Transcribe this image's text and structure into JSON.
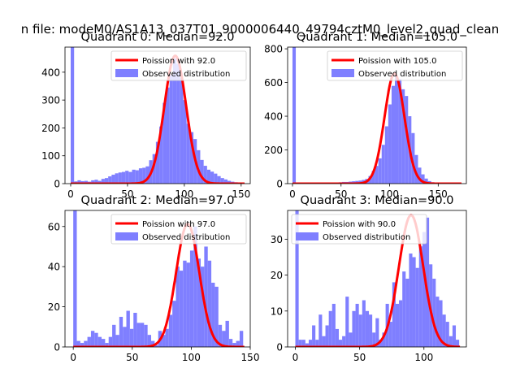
{
  "figure": {
    "suptitle": "n file: modeM0/AS1A13_037T01_9000006440_49794cztM0_level2_quad_clean",
    "colors": {
      "background": "#ffffff",
      "bars": "#7f7fff",
      "line": "#ff0000",
      "legend_border": "#cccccc"
    }
  },
  "chart_data": [
    {
      "type": "bar",
      "title": "Quadrant 0: Median=92.0",
      "median": 92.0,
      "xlim": [
        -5,
        158
      ],
      "ylim": [
        0,
        490
      ],
      "xticks": [
        0,
        50,
        100,
        150
      ],
      "yticks": [
        0,
        100,
        200,
        300,
        400
      ],
      "bin_width": 3,
      "legend": {
        "line": "Poission with 92.0",
        "bars": "Observed distribution",
        "location": "upper right"
      },
      "bins": [
        [
          0,
          490
        ],
        [
          3,
          8
        ],
        [
          6,
          12
        ],
        [
          9,
          9
        ],
        [
          12,
          10
        ],
        [
          15,
          7
        ],
        [
          18,
          12
        ],
        [
          21,
          14
        ],
        [
          24,
          10
        ],
        [
          27,
          17
        ],
        [
          30,
          20
        ],
        [
          33,
          26
        ],
        [
          36,
          32
        ],
        [
          39,
          37
        ],
        [
          42,
          40
        ],
        [
          45,
          42
        ],
        [
          48,
          46
        ],
        [
          51,
          42
        ],
        [
          54,
          50
        ],
        [
          57,
          48
        ],
        [
          60,
          55
        ],
        [
          63,
          57
        ],
        [
          66,
          62
        ],
        [
          69,
          84
        ],
        [
          72,
          106
        ],
        [
          75,
          150
        ],
        [
          78,
          205
        ],
        [
          81,
          290
        ],
        [
          84,
          345
        ],
        [
          87,
          390
        ],
        [
          90,
          450
        ],
        [
          93,
          430
        ],
        [
          96,
          380
        ],
        [
          99,
          300
        ],
        [
          102,
          215
        ],
        [
          105,
          185
        ],
        [
          108,
          160
        ],
        [
          111,
          120
        ],
        [
          114,
          85
        ],
        [
          117,
          64
        ],
        [
          120,
          50
        ],
        [
          123,
          43
        ],
        [
          126,
          36
        ],
        [
          129,
          27
        ],
        [
          132,
          20
        ],
        [
          135,
          15
        ],
        [
          138,
          10
        ],
        [
          141,
          7
        ],
        [
          144,
          5
        ],
        [
          147,
          3
        ],
        [
          150,
          2
        ]
      ]
    },
    {
      "type": "bar",
      "title": "Quadrant 1: Median=105.0",
      "median": 105.0,
      "xlim": [
        -5,
        179
      ],
      "ylim": [
        0,
        810
      ],
      "xticks": [
        0,
        50,
        100,
        150
      ],
      "yticks": [
        0,
        200,
        400,
        600,
        800
      ],
      "bin_width": 3.4,
      "legend": {
        "line": "Poission with 105.0",
        "bars": "Observed distribution",
        "location": "upper right"
      },
      "bins": [
        [
          0,
          810
        ],
        [
          3.4,
          4
        ],
        [
          6.8,
          3
        ],
        [
          10.2,
          2
        ],
        [
          13.6,
          2
        ],
        [
          17,
          3
        ],
        [
          20.4,
          3
        ],
        [
          23.8,
          4
        ],
        [
          27.2,
          3
        ],
        [
          30.6,
          4
        ],
        [
          34,
          5
        ],
        [
          37.4,
          5
        ],
        [
          40.8,
          6
        ],
        [
          44.2,
          7
        ],
        [
          47.6,
          8
        ],
        [
          51,
          10
        ],
        [
          54.4,
          10
        ],
        [
          57.8,
          12
        ],
        [
          61.2,
          14
        ],
        [
          64.6,
          16
        ],
        [
          68,
          18
        ],
        [
          71.4,
          22
        ],
        [
          74.8,
          28
        ],
        [
          78.2,
          45
        ],
        [
          81.6,
          75
        ],
        [
          85,
          105
        ],
        [
          88.4,
          150
        ],
        [
          91.8,
          230
        ],
        [
          95.2,
          340
        ],
        [
          98.6,
          470
        ],
        [
          102,
          580
        ],
        [
          105.4,
          640
        ],
        [
          108.8,
          620
        ],
        [
          112.2,
          560
        ],
        [
          115.6,
          520
        ],
        [
          119,
          400
        ],
        [
          122.4,
          300
        ],
        [
          125.8,
          170
        ],
        [
          129.2,
          95
        ],
        [
          132.6,
          55
        ],
        [
          136,
          30
        ],
        [
          139.4,
          15
        ],
        [
          142.8,
          8
        ],
        [
          146.2,
          5
        ],
        [
          149.6,
          3
        ],
        [
          153,
          2
        ],
        [
          156.4,
          1
        ]
      ]
    },
    {
      "type": "bar",
      "title": "Quadrant 2: Median=97.0",
      "median": 97.0,
      "xlim": [
        -7,
        150
      ],
      "ylim": [
        0,
        68
      ],
      "xticks": [
        0,
        50,
        100,
        150
      ],
      "yticks": [
        0,
        20,
        40,
        60
      ],
      "bin_width": 3,
      "legend": {
        "line": "Poission with 97.0",
        "bars": "Observed distribution",
        "location": "upper right"
      },
      "bins": [
        [
          0,
          68
        ],
        [
          3,
          3
        ],
        [
          6,
          2
        ],
        [
          9,
          3
        ],
        [
          12,
          5
        ],
        [
          15,
          8
        ],
        [
          18,
          7
        ],
        [
          21,
          5
        ],
        [
          24,
          4
        ],
        [
          27,
          2
        ],
        [
          30,
          5
        ],
        [
          33,
          11
        ],
        [
          36,
          6
        ],
        [
          39,
          15
        ],
        [
          42,
          10
        ],
        [
          45,
          18
        ],
        [
          48,
          9
        ],
        [
          51,
          17
        ],
        [
          54,
          12
        ],
        [
          57,
          12
        ],
        [
          60,
          11
        ],
        [
          63,
          6
        ],
        [
          66,
          3
        ],
        [
          69,
          1
        ],
        [
          72,
          8
        ],
        [
          75,
          6
        ],
        [
          78,
          9
        ],
        [
          81,
          16
        ],
        [
          84,
          23
        ],
        [
          87,
          40
        ],
        [
          90,
          38
        ],
        [
          93,
          43
        ],
        [
          96,
          42
        ],
        [
          99,
          48
        ],
        [
          102,
          60
        ],
        [
          105,
          44
        ],
        [
          108,
          40
        ],
        [
          111,
          50
        ],
        [
          114,
          43
        ],
        [
          117,
          32
        ],
        [
          120,
          30
        ],
        [
          123,
          11
        ],
        [
          126,
          8
        ],
        [
          129,
          13
        ],
        [
          132,
          4
        ],
        [
          135,
          2
        ],
        [
          138,
          3
        ],
        [
          141,
          8
        ]
      ]
    },
    {
      "type": "bar",
      "title": "Quadrant 3: Median=90.0",
      "median": 90.0,
      "xlim": [
        -6,
        133
      ],
      "ylim": [
        0,
        38
      ],
      "xticks": [
        0,
        50,
        100
      ],
      "yticks": [
        0,
        10,
        20,
        30
      ],
      "bin_width": 2.6,
      "legend": {
        "line": "Poission with 90.0",
        "bars": "Observed distribution",
        "location": "upper left"
      },
      "bins": [
        [
          0,
          38
        ],
        [
          2.6,
          2
        ],
        [
          5.2,
          2
        ],
        [
          7.8,
          1
        ],
        [
          10.4,
          2
        ],
        [
          13,
          6
        ],
        [
          15.6,
          2
        ],
        [
          18.2,
          9
        ],
        [
          20.8,
          3
        ],
        [
          23.4,
          6
        ],
        [
          26,
          10
        ],
        [
          28.6,
          12
        ],
        [
          31.2,
          5
        ],
        [
          33.8,
          2
        ],
        [
          36.4,
          3
        ],
        [
          39,
          14
        ],
        [
          41.6,
          4
        ],
        [
          44.2,
          10
        ],
        [
          46.8,
          12
        ],
        [
          49.4,
          9
        ],
        [
          52,
          13
        ],
        [
          54.6,
          10
        ],
        [
          57.2,
          9
        ],
        [
          59.8,
          4
        ],
        [
          62.4,
          8
        ],
        [
          65,
          2
        ],
        [
          67.6,
          4
        ],
        [
          70.2,
          12
        ],
        [
          72.8,
          7
        ],
        [
          75.4,
          18
        ],
        [
          78,
          12
        ],
        [
          80.6,
          13
        ],
        [
          83.2,
          21
        ],
        [
          85.8,
          19
        ],
        [
          88.4,
          26
        ],
        [
          91,
          25
        ],
        [
          93.6,
          22
        ],
        [
          96.2,
          28
        ],
        [
          98.8,
          32
        ],
        [
          101.4,
          36
        ],
        [
          104,
          23
        ],
        [
          106.6,
          19
        ],
        [
          109.2,
          14
        ],
        [
          111.8,
          13
        ],
        [
          114.4,
          9
        ],
        [
          117,
          7
        ],
        [
          119.6,
          3
        ],
        [
          122.2,
          6
        ],
        [
          124.8,
          2
        ]
      ]
    }
  ]
}
